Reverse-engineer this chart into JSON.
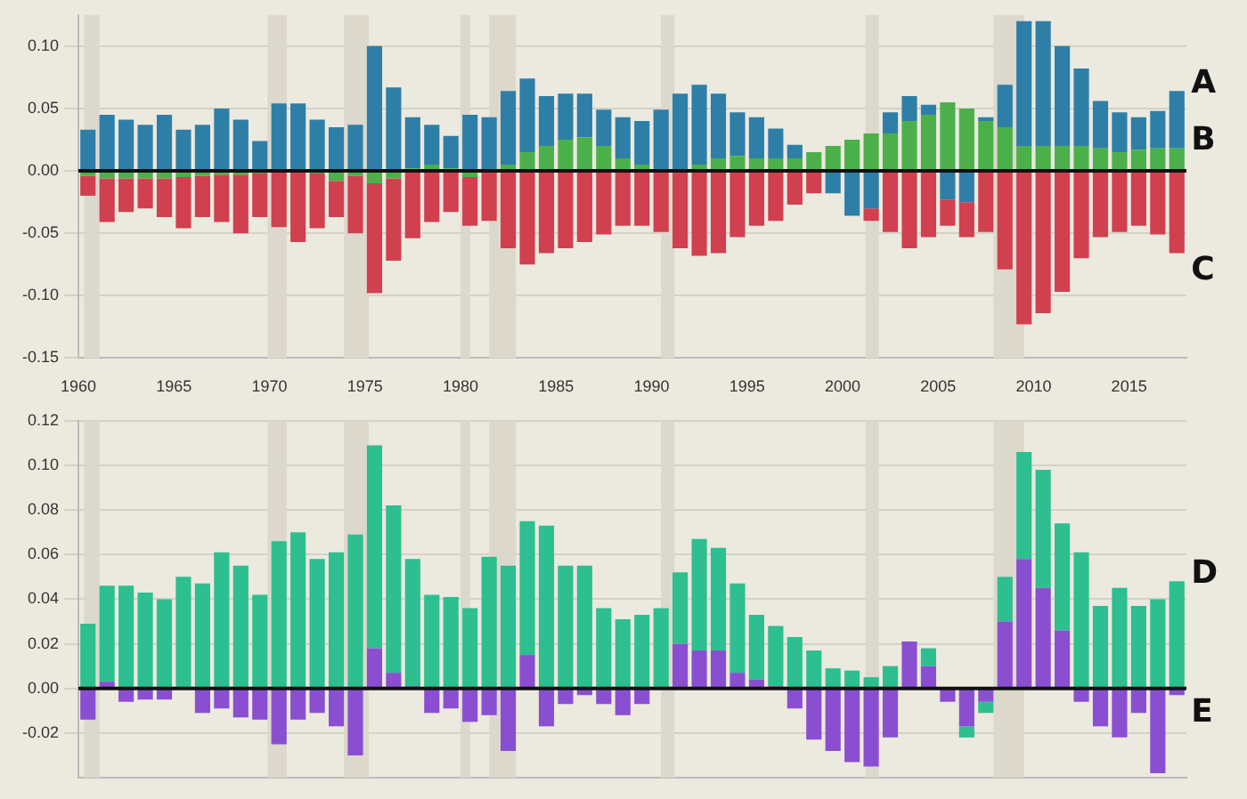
{
  "chart_data": [
    {
      "type": "bar",
      "stacked": true,
      "x": [
        1960.5,
        1961.5,
        1962.5,
        1963.5,
        1964.5,
        1965.5,
        1966.5,
        1967.5,
        1968.5,
        1969.5,
        1970.5,
        1971.5,
        1972.5,
        1973.5,
        1974.5,
        1975.5,
        1976.5,
        1977.5,
        1978.5,
        1979.5,
        1980.5,
        1981.5,
        1982.5,
        1983.5,
        1984.5,
        1985.5,
        1986.5,
        1987.5,
        1988.5,
        1989.5,
        1990.5,
        1991.5,
        1992.5,
        1993.5,
        1994.5,
        1995.5,
        1996.5,
        1997.5,
        1998.5,
        1999.5,
        2000.5,
        2001.5,
        2002.5,
        2003.5,
        2004.5,
        2005.5,
        2006.5,
        2007.5,
        2008.5,
        2009.5,
        2010.5,
        2011.5,
        2012.5,
        2013.5,
        2014.5,
        2015.5,
        2016.5,
        2017.5
      ],
      "series": [
        {
          "name": "B",
          "color": "#4cb04a",
          "values": [
            -0.004,
            -0.006,
            -0.006,
            -0.006,
            -0.006,
            -0.005,
            -0.004,
            -0.003,
            -0.003,
            -0.002,
            null,
            0,
            -0.002,
            -0.008,
            -0.004,
            -0.01,
            -0.006,
            0.002,
            0.005,
            0.002,
            -0.005,
            0,
            0.005,
            0.015,
            0.02,
            0.025,
            0.027,
            0.02,
            0.01,
            0.005,
            0,
            0,
            0.005,
            0.01,
            0.012,
            0.01,
            0.01,
            0.01,
            0.015,
            0.02,
            0.025,
            0.03,
            0.03,
            0.04,
            0.045,
            0.055,
            0.05,
            0.04,
            0.035,
            0.02,
            0.02,
            0.02,
            0.02,
            0.018,
            0.015,
            0.017,
            0.018,
            0.018
          ]
        },
        {
          "name": "A",
          "color": "#2e7fa8",
          "values": [
            0.033,
            0.045,
            0.041,
            0.037,
            0.045,
            0.033,
            0.037,
            0.05,
            0.041,
            0.024,
            0.054,
            0.054,
            0.041,
            0.035,
            0.037,
            0.1,
            0.067,
            0.041,
            0.032,
            0.026,
            0.045,
            0.043,
            0.059,
            0.059,
            0.04,
            0.037,
            0.035,
            0.029,
            0.033,
            0.035,
            0.049,
            0.062,
            0.064,
            0.052,
            0.035,
            0.033,
            0.024,
            0.011,
            null,
            -0.018,
            -0.036,
            -0.03,
            0.017,
            0.02,
            0.008,
            -0.023,
            -0.025,
            0.003,
            0.034,
            0.1,
            0.1,
            0.08,
            0.062,
            0.038,
            0.032,
            0.026,
            0.03,
            0.046
          ]
        },
        {
          "name": "C",
          "color": "#d0404f",
          "values": [
            -0.016,
            -0.035,
            -0.027,
            -0.024,
            -0.031,
            -0.041,
            -0.033,
            -0.038,
            -0.047,
            -0.035,
            -0.045,
            -0.057,
            -0.044,
            -0.029,
            -0.046,
            -0.088,
            -0.066,
            -0.054,
            -0.041,
            -0.033,
            -0.039,
            -0.04,
            -0.062,
            -0.075,
            -0.066,
            -0.062,
            -0.057,
            -0.051,
            -0.044,
            -0.044,
            -0.049,
            -0.062,
            -0.068,
            -0.066,
            -0.053,
            -0.044,
            -0.04,
            -0.027,
            -0.018,
            null,
            null,
            -0.01,
            -0.049,
            -0.062,
            -0.053,
            -0.021,
            -0.028,
            -0.049,
            -0.079,
            -0.123,
            -0.114,
            -0.097,
            -0.07,
            -0.053,
            -0.049,
            -0.044,
            -0.051,
            -0.066
          ]
        }
      ],
      "xlim": [
        1960,
        2018
      ],
      "xticks": [
        1960,
        1965,
        1970,
        1975,
        1980,
        1985,
        1990,
        1995,
        2000,
        2005,
        2010,
        2015
      ],
      "ylim": [
        -0.15,
        0.125
      ],
      "yticks": [
        {
          "value": -0.15,
          "label": "-0.15"
        },
        {
          "value": -0.1,
          "label": "-0.10"
        },
        {
          "value": -0.05,
          "label": "-0.05"
        },
        {
          "value": 0,
          "label": "0.00"
        },
        {
          "value": 0.05,
          "label": "0.05"
        },
        {
          "value": 0.1,
          "label": "0.10"
        }
      ],
      "bands": [
        {
          "axis": "x",
          "from": 1960.3,
          "to": 1961.1,
          "color": "#dcd8cc"
        },
        {
          "axis": "x",
          "from": 1969.9,
          "to": 1970.9,
          "color": "#dcd8cc"
        },
        {
          "axis": "x",
          "from": 1973.9,
          "to": 1975.2,
          "color": "#dcd8cc"
        },
        {
          "axis": "x",
          "from": 1980.0,
          "to": 1980.5,
          "color": "#dcd8cc"
        },
        {
          "axis": "x",
          "from": 1981.5,
          "to": 1982.9,
          "color": "#dcd8cc"
        },
        {
          "axis": "x",
          "from": 1990.5,
          "to": 1991.2,
          "color": "#dcd8cc"
        },
        {
          "axis": "x",
          "from": 2001.2,
          "to": 2001.9,
          "color": "#dcd8cc"
        },
        {
          "axis": "x",
          "from": 2007.9,
          "to": 2009.5,
          "color": "#dcd8cc"
        }
      ],
      "grid": "y",
      "legend": false
    },
    {
      "type": "bar",
      "stacked": true,
      "x": [
        1960.5,
        1961.5,
        1962.5,
        1963.5,
        1964.5,
        1965.5,
        1966.5,
        1967.5,
        1968.5,
        1969.5,
        1970.5,
        1971.5,
        1972.5,
        1973.5,
        1974.5,
        1975.5,
        1976.5,
        1977.5,
        1978.5,
        1979.5,
        1980.5,
        1981.5,
        1982.5,
        1983.5,
        1984.5,
        1985.5,
        1986.5,
        1987.5,
        1988.5,
        1989.5,
        1990.5,
        1991.5,
        1992.5,
        1993.5,
        1994.5,
        1995.5,
        1996.5,
        1997.5,
        1998.5,
        1999.5,
        2000.5,
        2001.5,
        2002.5,
        2003.5,
        2004.5,
        2005.5,
        2006.5,
        2007.5,
        2008.5,
        2009.5,
        2010.5,
        2011.5,
        2012.5,
        2013.5,
        2014.5,
        2015.5,
        2016.5,
        2017.5
      ],
      "series": [
        {
          "name": "E",
          "color": "#8a4fd0",
          "values": [
            -0.014,
            0.003,
            -0.006,
            -0.005,
            -0.005,
            null,
            -0.011,
            -0.009,
            -0.013,
            -0.014,
            -0.025,
            -0.014,
            -0.011,
            -0.017,
            -0.03,
            0.018,
            0.007,
            0.001,
            -0.011,
            -0.009,
            -0.015,
            -0.012,
            -0.028,
            0.015,
            -0.017,
            -0.007,
            -0.003,
            -0.007,
            -0.012,
            -0.007,
            null,
            0.02,
            0.017,
            0.017,
            0.007,
            0.004,
            0.001,
            -0.009,
            -0.023,
            -0.028,
            -0.033,
            -0.035,
            -0.022,
            0.021,
            0.01,
            -0.006,
            -0.017,
            -0.006,
            0.03,
            0.058,
            0.045,
            0.026,
            -0.006,
            -0.017,
            -0.022,
            -0.011,
            -0.038,
            -0.003
          ]
        },
        {
          "name": "D",
          "color": "#2dbf8f",
          "values": [
            0.029,
            0.043,
            0.046,
            0.043,
            0.04,
            0.05,
            0.047,
            0.061,
            0.055,
            0.042,
            0.066,
            0.07,
            0.058,
            0.061,
            0.069,
            0.091,
            0.075,
            0.057,
            0.042,
            0.041,
            0.036,
            0.059,
            0.055,
            0.06,
            0.073,
            0.055,
            0.055,
            0.036,
            0.031,
            0.033,
            0.036,
            0.032,
            0.05,
            0.046,
            0.04,
            0.029,
            0.027,
            0.023,
            0.017,
            0.009,
            0.008,
            0.005,
            0.01,
            null,
            0.008,
            null,
            -0.005,
            -0.005,
            0.02,
            0.048,
            0.053,
            0.048,
            0.061,
            0.037,
            0.045,
            0.037,
            0.04,
            0.048
          ]
        }
      ],
      "xlim": [
        1960,
        2018
      ],
      "ylim": [
        -0.04,
        0.12
      ],
      "yticks": [
        {
          "value": -0.02,
          "label": "-0.02"
        },
        {
          "value": 0,
          "label": "0.00"
        },
        {
          "value": 0.02,
          "label": "0.02"
        },
        {
          "value": 0.04,
          "label": "0.04"
        },
        {
          "value": 0.06,
          "label": "0.06"
        },
        {
          "value": 0.08,
          "label": "0.08"
        },
        {
          "value": 0.1,
          "label": "0.10"
        },
        {
          "value": 0.12,
          "label": "0.12"
        }
      ],
      "tick_labels": "y",
      "bands": [
        {
          "axis": "x",
          "from": 1960.3,
          "to": 1961.1,
          "color": "#dcd8cc"
        },
        {
          "axis": "x",
          "from": 1969.9,
          "to": 1970.9,
          "color": "#dcd8cc"
        },
        {
          "axis": "x",
          "from": 1973.9,
          "to": 1975.2,
          "color": "#dcd8cc"
        },
        {
          "axis": "x",
          "from": 1980.0,
          "to": 1980.5,
          "color": "#dcd8cc"
        },
        {
          "axis": "x",
          "from": 1981.5,
          "to": 1982.9,
          "color": "#dcd8cc"
        },
        {
          "axis": "x",
          "from": 1990.5,
          "to": 1991.2,
          "color": "#dcd8cc"
        },
        {
          "axis": "x",
          "from": 2001.2,
          "to": 2001.9,
          "color": "#dcd8cc"
        },
        {
          "axis": "x",
          "from": 2007.9,
          "to": 2009.5,
          "color": "#dcd8cc"
        }
      ],
      "grid": "y",
      "legend": false
    }
  ]
}
